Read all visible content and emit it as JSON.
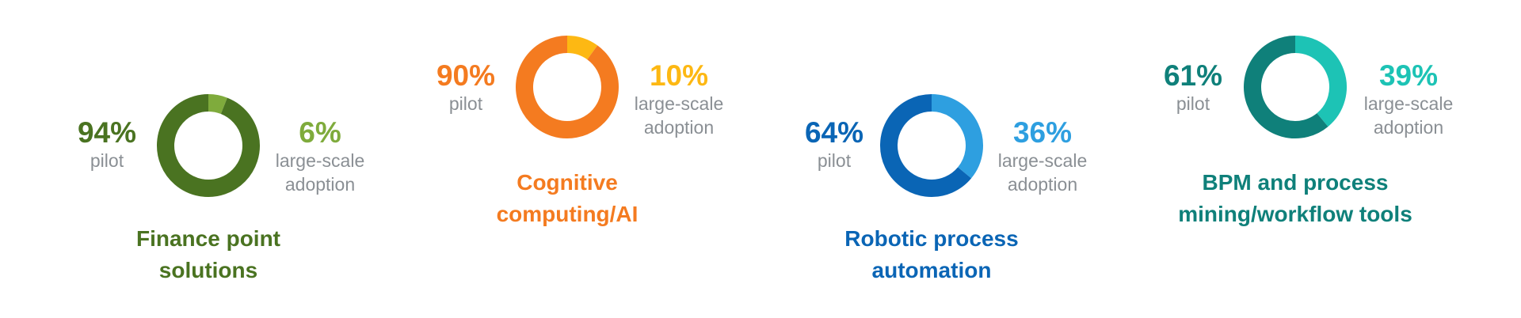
{
  "chart_data": [
    {
      "type": "donut",
      "title": "Finance point solutions",
      "categories": [
        "pilot",
        "large-scale adoption"
      ],
      "values": [
        94,
        6
      ],
      "value_labels": [
        "94%",
        "6%"
      ],
      "colors": [
        "#4a7321",
        "#7fab3c"
      ]
    },
    {
      "type": "donut",
      "title": "Cognitive computing/AI",
      "categories": [
        "pilot",
        "large-scale adoption"
      ],
      "values": [
        90,
        10
      ],
      "value_labels": [
        "90%",
        "10%"
      ],
      "colors": [
        "#f47b20",
        "#fdb813"
      ]
    },
    {
      "type": "donut",
      "title": "Robotic process automation",
      "categories": [
        "pilot",
        "large-scale adoption"
      ],
      "values": [
        64,
        36
      ],
      "value_labels": [
        "64%",
        "36%"
      ],
      "colors": [
        "#0a65b5",
        "#2e9fe0"
      ]
    },
    {
      "type": "donut",
      "title": "BPM and process mining/workflow tools",
      "categories": [
        "pilot",
        "large-scale adoption"
      ],
      "values": [
        61,
        39
      ],
      "value_labels": [
        "61%",
        "39%"
      ],
      "colors": [
        "#0f807a",
        "#1dc3b5"
      ]
    }
  ]
}
